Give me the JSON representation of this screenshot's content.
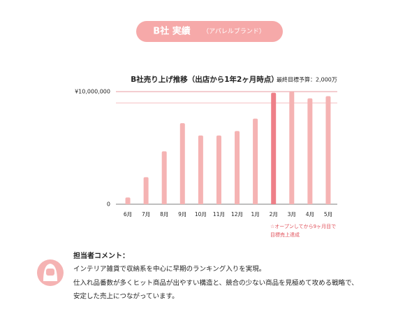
{
  "header": {
    "title": "B社 実績",
    "subtitle": "（アパレルブランド）"
  },
  "chart_data": {
    "type": "bar",
    "title": "B社売り上げ推移（出店から1年2ヶ月時点）",
    "subtitle": "最終目標予算：2,000万",
    "categories": [
      "6月",
      "7月",
      "8月",
      "9月",
      "10月",
      "11月",
      "12月",
      "1月",
      "2月",
      "3月",
      "4月",
      "5月"
    ],
    "values": [
      600000,
      2400000,
      4700000,
      7200000,
      6100000,
      6100000,
      6500000,
      7600000,
      9900000,
      10000000,
      9400000,
      9600000
    ],
    "colors": [
      "#f5b3b3",
      "#f5b3b3",
      "#f5b3b3",
      "#f5b3b3",
      "#f5b3b3",
      "#f5b3b3",
      "#f5b3b3",
      "#f5b3b3",
      "#ee7f88",
      "#f5b3b3",
      "#f5b3b3",
      "#f5b3b3"
    ],
    "ylim": [
      0,
      10000000
    ],
    "yticks": [
      0,
      {
        "value": 10000000,
        "label": "¥10,000,000"
      }
    ],
    "reference_line": 9000000,
    "annotation": [
      "☆オープンしてから9ヶ月目で",
      "目標売上達成"
    ]
  },
  "comment": {
    "heading": "担当者コメント：",
    "lines": [
      "インテリア雑貨で収納系を中心に早期のランキング入りを実現。",
      "仕入れ品番数が多くヒット商品が出やすい構造と、競合の少ない商品を見極めて攻める戦略で、",
      "安定した売上につながっています。"
    ]
  }
}
